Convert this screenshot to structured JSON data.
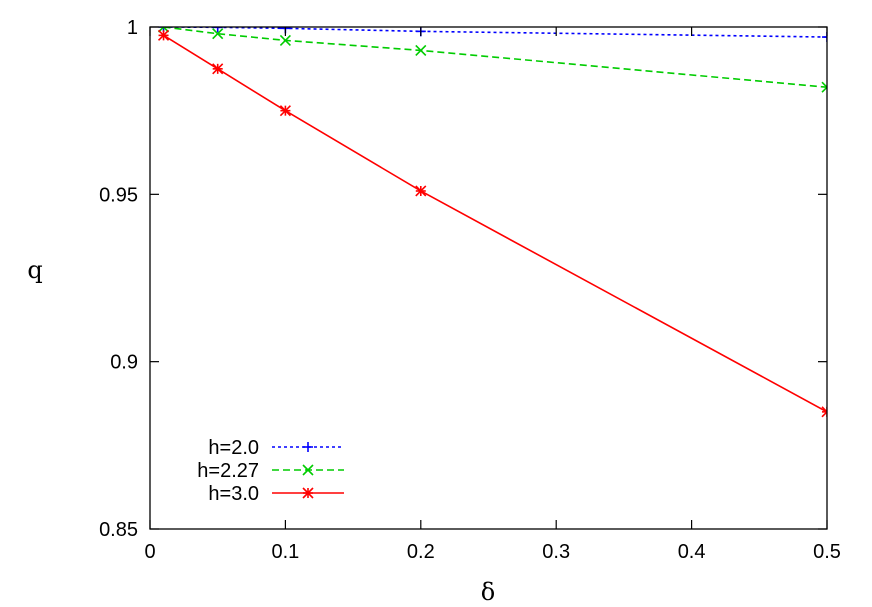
{
  "chart_data": {
    "type": "line",
    "xlabel": "δ",
    "ylabel": "q",
    "xlim": [
      0,
      0.5
    ],
    "ylim": [
      0.85,
      1.0
    ],
    "x_ticks": [
      "0",
      "0.1",
      "0.2",
      "0.3",
      "0.4",
      "0.5"
    ],
    "y_ticks": [
      "0.85",
      "0.9",
      "0.95",
      "1"
    ],
    "grid": false,
    "legend_position": "bottom-left",
    "series": [
      {
        "name": "h=2.0",
        "color": "#0000ff",
        "marker": "plus",
        "dash": "dotted",
        "x": [
          0.01,
          0.05,
          0.1,
          0.2,
          0.5
        ],
        "y": [
          1.0,
          0.9999,
          0.9996,
          0.9987,
          0.997
        ]
      },
      {
        "name": "h=2.27",
        "color": "#00cc00",
        "marker": "cross",
        "dash": "dashed",
        "x": [
          0.01,
          0.05,
          0.1,
          0.2,
          0.5
        ],
        "y": [
          1.0,
          0.998,
          0.996,
          0.993,
          0.982
        ]
      },
      {
        "name": "h=3.0",
        "color": "#ff0000",
        "marker": "star",
        "dash": "solid",
        "x": [
          0.01,
          0.05,
          0.1,
          0.2,
          0.5
        ],
        "y": [
          0.9975,
          0.9875,
          0.975,
          0.951,
          0.885
        ]
      }
    ]
  }
}
